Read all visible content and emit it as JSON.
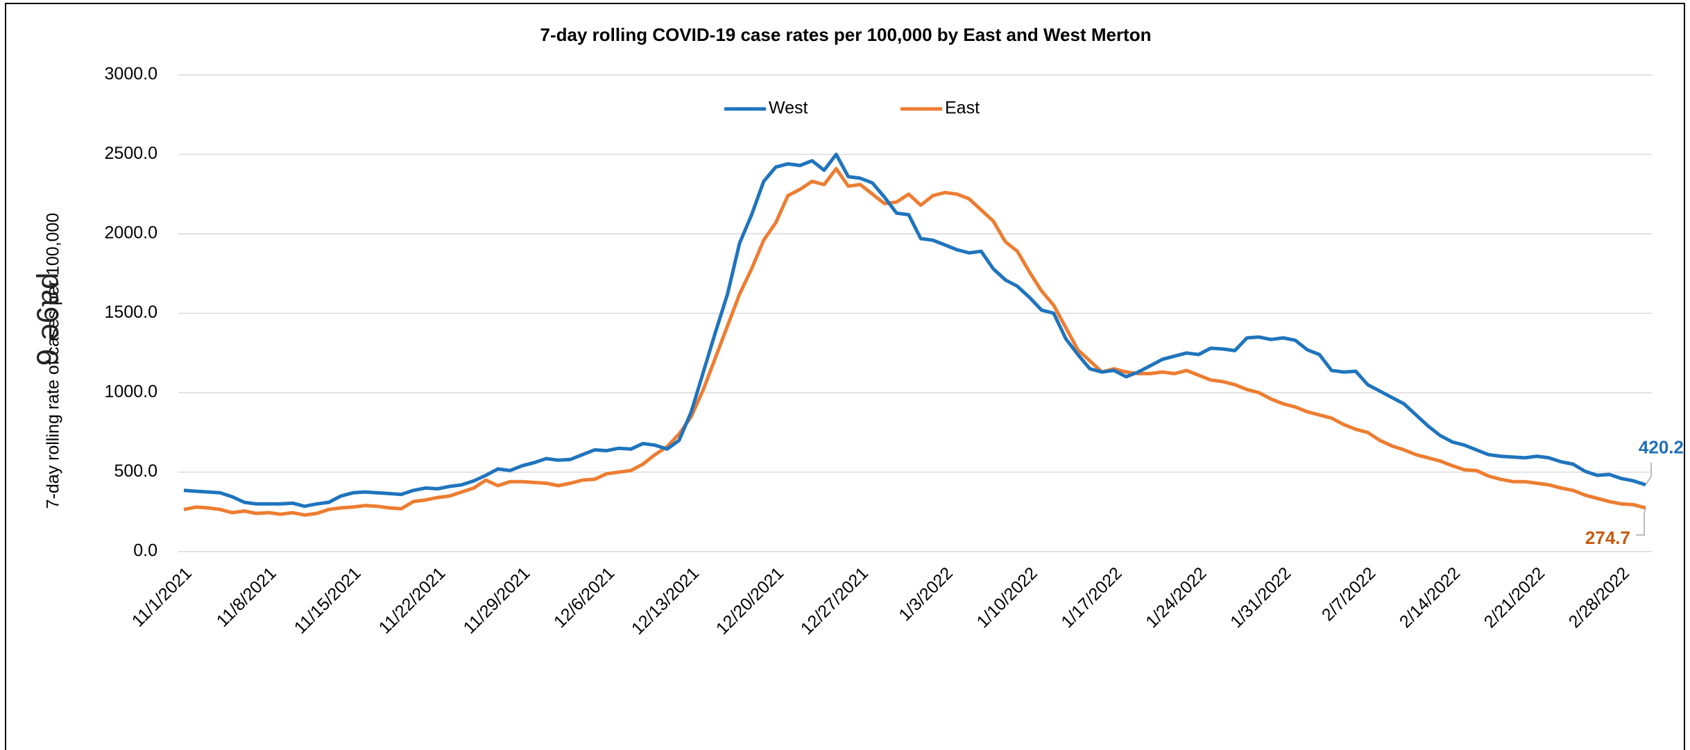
{
  "chart_data": {
    "type": "line",
    "title": "7-day rolling COVID-19 case rates per 100,000 by East and West Merton",
    "y_label": "7-day rolling rate of cases per 100,000",
    "annotation": "9 ə6ɐd",
    "categories": [
      "11/1/2021",
      null,
      null,
      null,
      null,
      null,
      null,
      "11/8/2021",
      null,
      null,
      null,
      null,
      null,
      null,
      "11/15/2021",
      null,
      null,
      null,
      null,
      null,
      null,
      "11/22/2021",
      null,
      null,
      null,
      null,
      null,
      null,
      "11/29/2021",
      null,
      null,
      null,
      null,
      null,
      null,
      "12/6/2021",
      null,
      null,
      null,
      null,
      null,
      null,
      "12/13/2021",
      null,
      null,
      null,
      null,
      null,
      null,
      "12/20/2021",
      null,
      null,
      null,
      null,
      null,
      null,
      "12/27/2021",
      null,
      null,
      null,
      null,
      null,
      null,
      "1/3/2022",
      null,
      null,
      null,
      null,
      null,
      null,
      "1/10/2022",
      null,
      null,
      null,
      null,
      null,
      null,
      "1/17/2022",
      null,
      null,
      null,
      null,
      null,
      null,
      "1/24/2022",
      null,
      null,
      null,
      null,
      null,
      null,
      "1/31/2022",
      null,
      null,
      null,
      null,
      null,
      null,
      "2/7/2022",
      null,
      null,
      null,
      null,
      null,
      null,
      "2/14/2022",
      null,
      null,
      null,
      null,
      null,
      null,
      "2/21/2022",
      null,
      null,
      null,
      null,
      null,
      null,
      "2/28/2022",
      null,
      null
    ],
    "series": [
      {
        "name": "West",
        "color": "#1f74bd",
        "label_color": "#1f6fb5",
        "values": [
          385,
          380,
          375,
          370,
          345,
          310,
          300,
          300,
          300,
          305,
          285,
          300,
          310,
          350,
          370,
          375,
          370,
          365,
          360,
          385,
          400,
          395,
          410,
          420,
          445,
          480,
          520,
          510,
          540,
          560,
          585,
          575,
          580,
          610,
          640,
          635,
          650,
          645,
          680,
          670,
          645,
          700,
          880,
          1130,
          1380,
          1620,
          1940,
          2120,
          2330,
          2420,
          2440,
          2430,
          2460,
          2400,
          2500,
          2360,
          2350,
          2320,
          2230,
          2130,
          2120,
          1970,
          1960,
          1930,
          1900,
          1880,
          1890,
          1780,
          1710,
          1670,
          1600,
          1520,
          1500,
          1340,
          1240,
          1150,
          1130,
          1140,
          1100,
          1130,
          1170,
          1210,
          1230,
          1250,
          1240,
          1280,
          1275,
          1265,
          1345,
          1350,
          1335,
          1345,
          1330,
          1270,
          1240,
          1140,
          1130,
          1135,
          1050,
          1010,
          970,
          930,
          860,
          790,
          730,
          690,
          670,
          640,
          610,
          600,
          595,
          590,
          600,
          590,
          565,
          550,
          505,
          480,
          485,
          460,
          445,
          420.2
        ]
      },
      {
        "name": "East",
        "color": "#ed7d31",
        "label_color": "#c55a11",
        "values": [
          265,
          280,
          275,
          265,
          245,
          255,
          240,
          245,
          235,
          245,
          230,
          240,
          265,
          275,
          280,
          290,
          285,
          275,
          270,
          315,
          325,
          340,
          350,
          375,
          400,
          450,
          415,
          440,
          440,
          435,
          430,
          415,
          430,
          450,
          455,
          490,
          500,
          510,
          550,
          610,
          660,
          740,
          850,
          1020,
          1220,
          1420,
          1620,
          1780,
          1960,
          2070,
          2240,
          2280,
          2330,
          2310,
          2410,
          2300,
          2310,
          2250,
          2190,
          2200,
          2250,
          2180,
          2240,
          2260,
          2250,
          2220,
          2150,
          2080,
          1950,
          1890,
          1760,
          1640,
          1550,
          1410,
          1270,
          1200,
          1130,
          1150,
          1130,
          1120,
          1120,
          1130,
          1120,
          1140,
          1110,
          1080,
          1070,
          1050,
          1020,
          1000,
          960,
          930,
          910,
          880,
          860,
          840,
          800,
          770,
          750,
          700,
          665,
          640,
          610,
          590,
          570,
          540,
          515,
          510,
          475,
          455,
          440,
          440,
          430,
          420,
          400,
          385,
          355,
          335,
          315,
          300,
          295,
          274.7
        ]
      }
    ],
    "ylim": [
      0,
      3000
    ],
    "yticks": [
      {
        "value": 0,
        "label": "0.0"
      },
      {
        "value": 500,
        "label": "500.0"
      },
      {
        "value": 1000,
        "label": "1000.0"
      },
      {
        "value": 1500,
        "label": "1500.0"
      },
      {
        "value": 2000,
        "label": "2000.0"
      },
      {
        "value": 2500,
        "label": "2500.0"
      },
      {
        "value": 3000,
        "label": "3000.0"
      }
    ],
    "grid": true,
    "legend": "top"
  }
}
